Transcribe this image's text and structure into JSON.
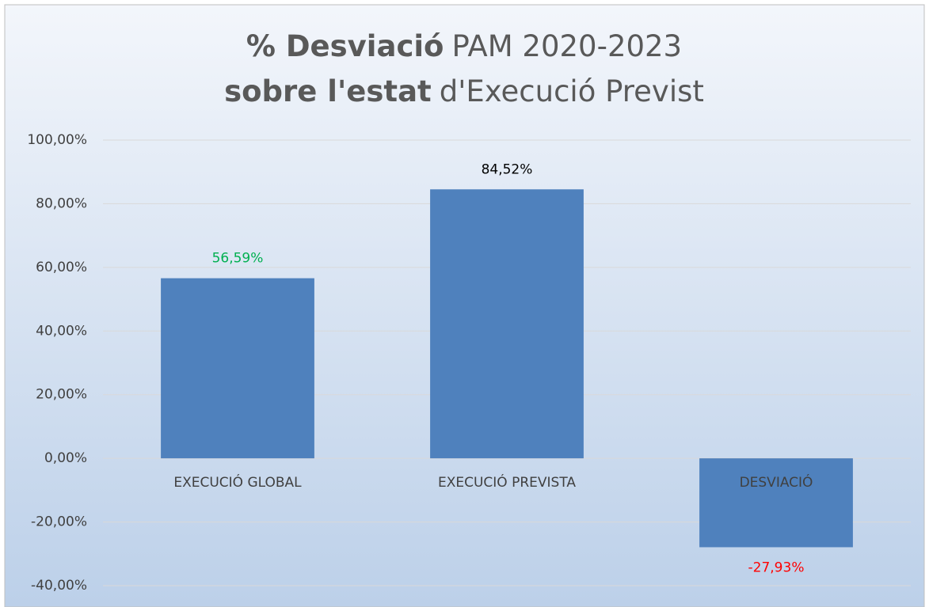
{
  "chart_data": {
    "type": "bar",
    "title": [
      {
        "bold": "% Desviació",
        "text": "PAM 2020-2023"
      },
      {
        "bold": "sobre l'estat",
        "text": "d'Execució Previst"
      }
    ],
    "categories": [
      "EXECUCIÓ GLOBAL",
      "EXECUCIÓ PREVISTA",
      "DESVIACIÓ"
    ],
    "values": [
      56.59,
      84.52,
      -27.93
    ],
    "value_labels": [
      "56,59%",
      "84,52%",
      "-27,93%"
    ],
    "value_label_colors": [
      "#00b050",
      "#000000",
      "#ff0000"
    ],
    "color": "#4f81bd",
    "ylim": [
      -40,
      100
    ],
    "yticks": [
      {
        "value": -40,
        "label": "-40,00%"
      },
      {
        "value": -20,
        "label": "-20,00%"
      },
      {
        "value": 0,
        "label": "0,00%"
      },
      {
        "value": 20,
        "label": "20,00%"
      },
      {
        "value": 40,
        "label": "40,00%"
      },
      {
        "value": 60,
        "label": "60,00%"
      },
      {
        "value": 80,
        "label": "80,00%"
      },
      {
        "value": 100,
        "label": "100,00%"
      }
    ],
    "grid": true
  }
}
